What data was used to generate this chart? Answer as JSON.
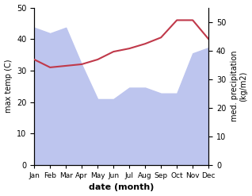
{
  "months": [
    "Jan",
    "Feb",
    "Mar",
    "Apr",
    "May",
    "Jun",
    "Jul",
    "Aug",
    "Sep",
    "Oct",
    "Nov",
    "Dec"
  ],
  "month_indices": [
    0,
    1,
    2,
    3,
    4,
    5,
    6,
    7,
    8,
    9,
    10,
    11
  ],
  "temperature": [
    33.5,
    31.0,
    31.5,
    32.0,
    33.5,
    36.0,
    37.0,
    38.5,
    40.5,
    46.0,
    46.0,
    40.0
  ],
  "precipitation": [
    48,
    46,
    48,
    35,
    23,
    23,
    27,
    27,
    25,
    25,
    39,
    41
  ],
  "temp_color": "#c0394a",
  "precip_fill_color": "#bdc5ee",
  "ylabel_left": "max temp (C)",
  "ylabel_right": "med. precipitation\n(kg/m2)",
  "xlabel": "date (month)",
  "temp_ylim": [
    0,
    50
  ],
  "precip_ylim": [
    0,
    55
  ],
  "precip_right_ticks": [
    0,
    10,
    20,
    30,
    40,
    50
  ],
  "temp_left_ticks": [
    0,
    10,
    20,
    30,
    40,
    50
  ],
  "figsize": [
    3.18,
    2.47
  ],
  "dpi": 100
}
